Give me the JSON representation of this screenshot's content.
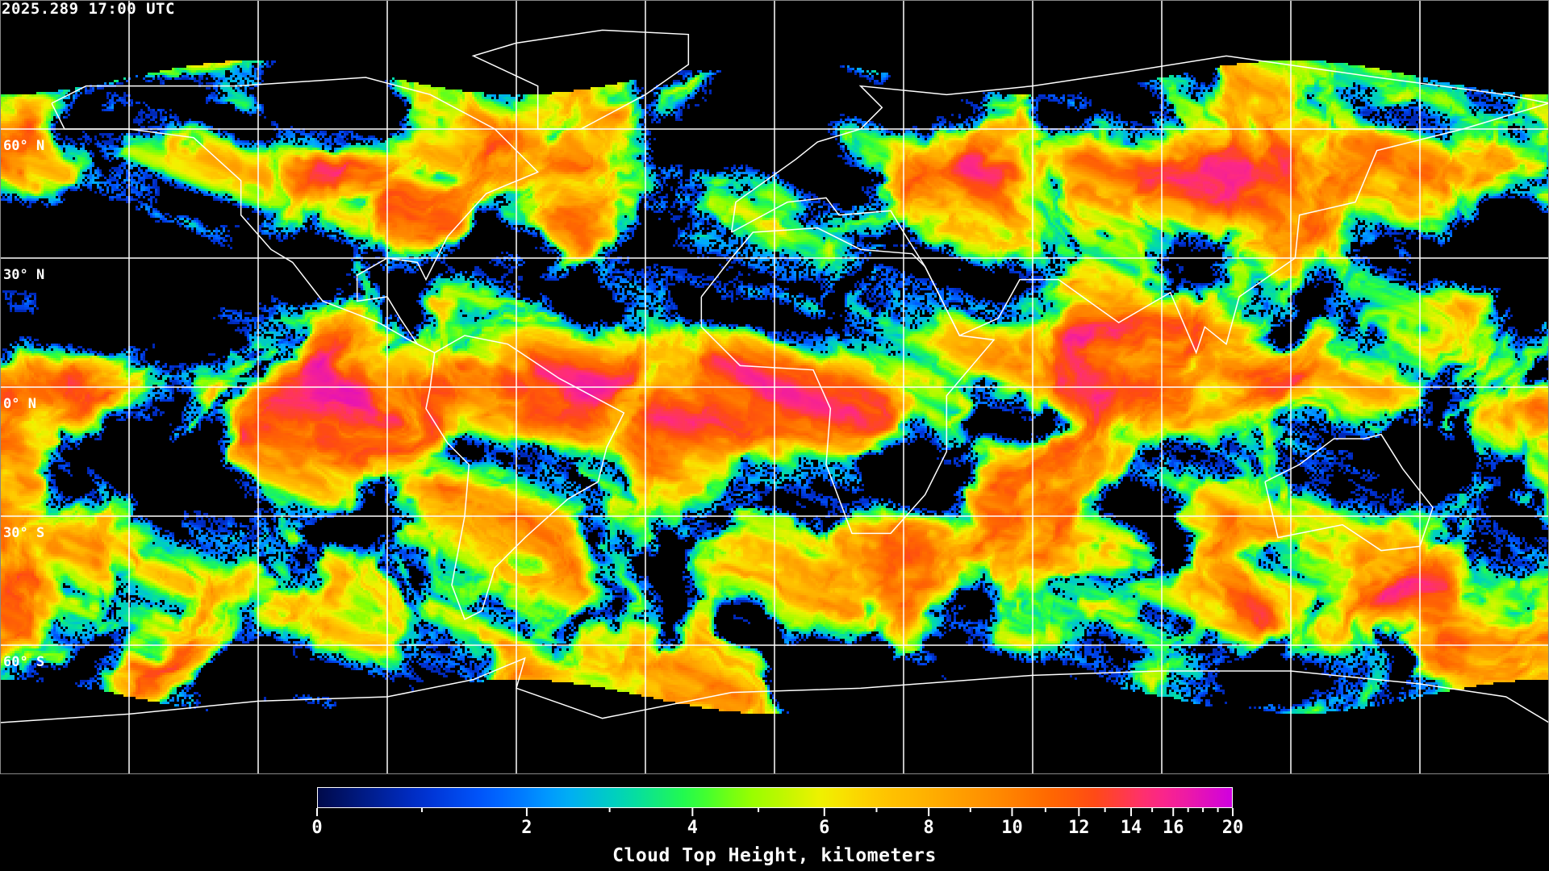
{
  "header": {
    "timestamp": "2025.289 17:00 UTC"
  },
  "map": {
    "projection": "equirectangular",
    "grid_spacing_degrees": 30,
    "grid_color": "#ffffff",
    "coastline_color": "#ffffff",
    "lat_labels": [
      "60° N",
      "30° N",
      "0° N",
      "30° S",
      "60° S"
    ],
    "lat_values": [
      60,
      30,
      0,
      -30,
      -60
    ]
  },
  "colorbar": {
    "title": "Cloud Top Height, kilometers",
    "min": 0,
    "max": 20,
    "major_ticks": [
      0,
      2,
      4,
      6,
      8,
      10,
      12,
      14,
      16,
      20
    ],
    "major_labels": [
      "0",
      "2",
      "4",
      "6",
      "8",
      "10",
      "12",
      "14",
      "16",
      "20"
    ],
    "minor_ticks": [
      1,
      3,
      5,
      7,
      9,
      11,
      13,
      15,
      17,
      18,
      19
    ],
    "colors": [
      {
        "value": 0,
        "color": "#000a4a"
      },
      {
        "value": 1,
        "color": "#0030d0"
      },
      {
        "value": 1.6,
        "color": "#0058ff"
      },
      {
        "value": 2.4,
        "color": "#00a8ff"
      },
      {
        "value": 3.2,
        "color": "#00d8b0"
      },
      {
        "value": 4,
        "color": "#28ff40"
      },
      {
        "value": 4.8,
        "color": "#90ff00"
      },
      {
        "value": 6,
        "color": "#f4f000"
      },
      {
        "value": 7,
        "color": "#ffc800"
      },
      {
        "value": 8.5,
        "color": "#ffa400"
      },
      {
        "value": 11,
        "color": "#ff6a00"
      },
      {
        "value": 12.5,
        "color": "#ff4c10"
      },
      {
        "value": 15,
        "color": "#ff2a80"
      },
      {
        "value": 20,
        "color": "#d000e0"
      }
    ]
  }
}
